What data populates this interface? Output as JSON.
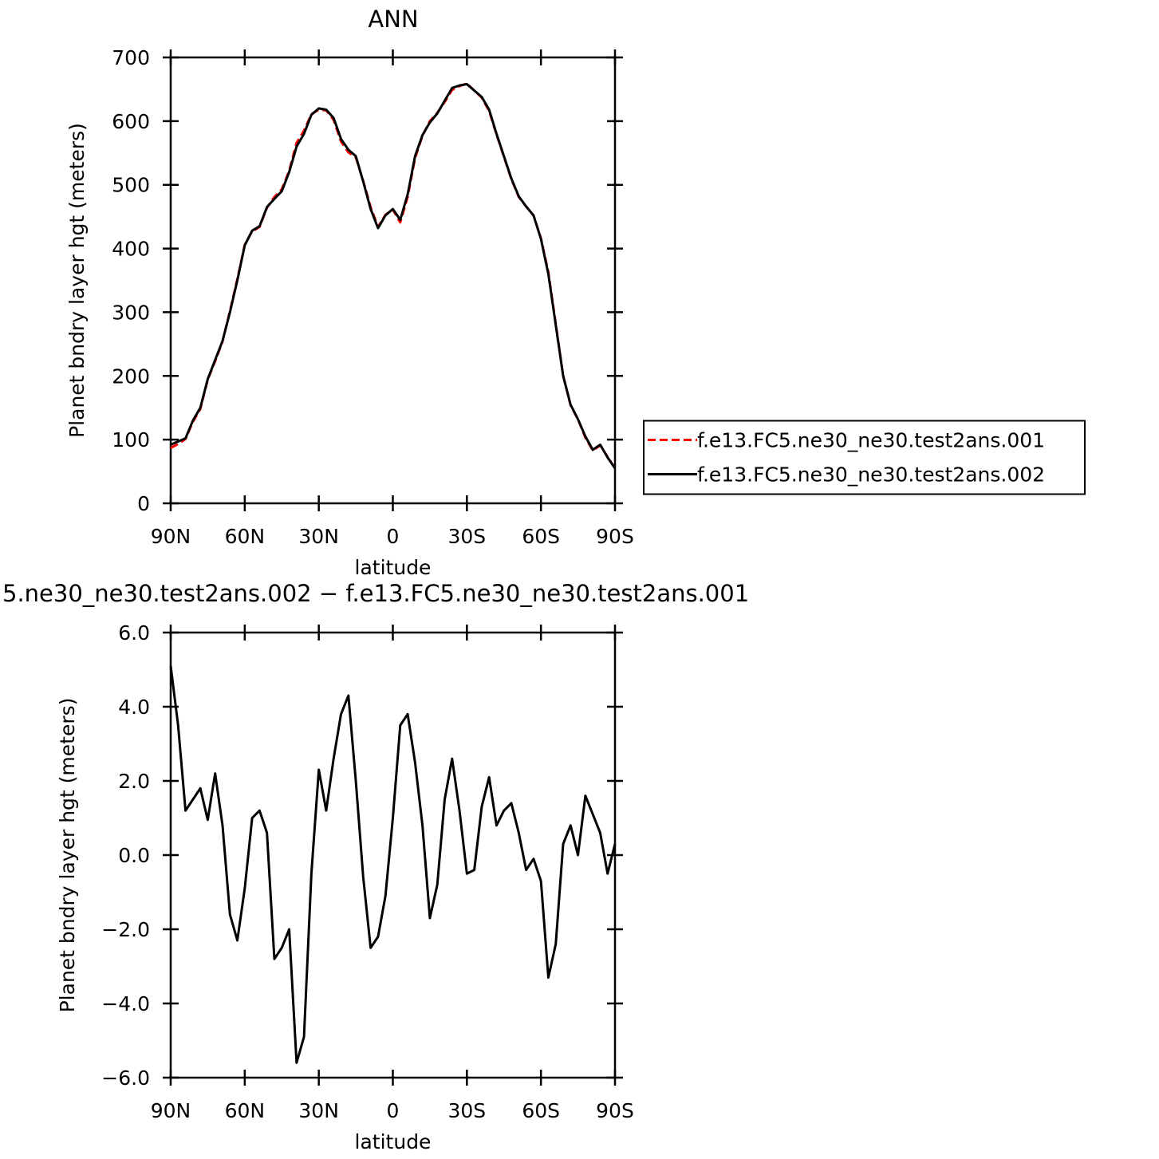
{
  "chart_data": [
    {
      "type": "line",
      "title": "ANN",
      "x_label": "latitude",
      "y_label": "Planet bndry layer hgt (meters)",
      "x": [
        90,
        87,
        84,
        81,
        78,
        75,
        72,
        69,
        66,
        63,
        60,
        57,
        54,
        51,
        48,
        45,
        42,
        39,
        36,
        33,
        30,
        27,
        24,
        21,
        18,
        15,
        12,
        9,
        6,
        3,
        0,
        -3,
        -6,
        -9,
        -12,
        -15,
        -18,
        -21,
        -24,
        -27,
        -30,
        -33,
        -36,
        -39,
        -42,
        -45,
        -48,
        -51,
        -54,
        -57,
        -60,
        -63,
        -66,
        -69,
        -72,
        -75,
        -78,
        -81,
        -84,
        -87,
        -90
      ],
      "xlim": [
        90,
        -90
      ],
      "xticks": [
        {
          "value": 90,
          "label": "90N"
        },
        {
          "value": 60,
          "label": "60N"
        },
        {
          "value": 30,
          "label": "30N"
        },
        0,
        {
          "value": -30,
          "label": "30S"
        },
        {
          "value": -60,
          "label": "60S"
        },
        {
          "value": -90,
          "label": "90S"
        }
      ],
      "ylim": [
        0,
        700
      ],
      "yticks": [
        0,
        100,
        200,
        300,
        400,
        500,
        600,
        700
      ],
      "legend": "right",
      "series": [
        {
          "name": "f.e13.FC5.ne30_ne30.test2ans.001",
          "color": "#ff0000",
          "dash": "dashed",
          "values": [
            87,
            93,
            101,
            128,
            148,
            194,
            223,
            254,
            302,
            352,
            406,
            427,
            434,
            464,
            481,
            493,
            522,
            566,
            585,
            611,
            618,
            617,
            602,
            568,
            551,
            543,
            506,
            465,
            434,
            453,
            461,
            441,
            481,
            542,
            577,
            600,
            613,
            630,
            649,
            655,
            659,
            648,
            637,
            616,
            579,
            544,
            509,
            481,
            466,
            452,
            416,
            363,
            282,
            200,
            154,
            132,
            103,
            83,
            91,
            73,
            55
          ]
        },
        {
          "name": "f.e13.FC5.ne30_ne30.test2ans.002",
          "color": "#000000",
          "dash": "solid",
          "values": [
            92,
            97,
            102,
            130,
            150,
            195,
            225,
            255,
            300,
            350,
            405,
            428,
            435,
            465,
            478,
            490,
            520,
            560,
            580,
            610,
            620,
            618,
            605,
            572,
            555,
            545,
            505,
            462,
            432,
            452,
            462,
            445,
            485,
            545,
            578,
            598,
            612,
            632,
            652,
            656,
            658,
            648,
            638,
            618,
            580,
            545,
            510,
            482,
            466,
            452,
            415,
            360,
            280,
            200,
            155,
            132,
            105,
            84,
            92,
            72,
            55
          ]
        }
      ]
    },
    {
      "type": "line",
      "title": "5.ne30_ne30.test2ans.002 − f.e13.FC5.ne30_ne30.test2ans.001",
      "x_label": "latitude",
      "y_label": "Planet bndry layer hgt (meters)",
      "x": [
        90,
        87,
        84,
        81,
        78,
        75,
        72,
        69,
        66,
        63,
        60,
        57,
        54,
        51,
        48,
        45,
        42,
        39,
        36,
        33,
        30,
        27,
        24,
        21,
        18,
        15,
        12,
        9,
        6,
        3,
        0,
        -3,
        -6,
        -9,
        -12,
        -15,
        -18,
        -21,
        -24,
        -27,
        -30,
        -33,
        -36,
        -39,
        -42,
        -45,
        -48,
        -51,
        -54,
        -57,
        -60,
        -63,
        -66,
        -69,
        -72,
        -75,
        -78,
        -81,
        -84,
        -87,
        -90
      ],
      "xlim": [
        90,
        -90
      ],
      "xticks": [
        {
          "value": 90,
          "label": "90N"
        },
        {
          "value": 60,
          "label": "60N"
        },
        {
          "value": 30,
          "label": "30N"
        },
        0,
        {
          "value": -30,
          "label": "30S"
        },
        {
          "value": -60,
          "label": "60S"
        },
        {
          "value": -90,
          "label": "90S"
        }
      ],
      "ylim": [
        -6,
        6
      ],
      "yticks": [
        {
          "value": -6,
          "label": "−6.0"
        },
        {
          "value": -4,
          "label": "−4.0"
        },
        {
          "value": -2,
          "label": "−2.0"
        },
        {
          "value": 0,
          "label": "0.0"
        },
        {
          "value": 2,
          "label": "2.0"
        },
        {
          "value": 4,
          "label": "4.0"
        },
        {
          "value": 6,
          "label": "6.0"
        }
      ],
      "series": [
        {
          "color": "#000000",
          "dash": "solid",
          "values": [
            5.1,
            3.5,
            1.2,
            1.5,
            1.8,
            0.95,
            2.2,
            0.8,
            -1.6,
            -2.3,
            -0.9,
            1.0,
            1.2,
            0.6,
            -2.8,
            -2.5,
            -2.0,
            -5.6,
            -4.9,
            -0.5,
            2.3,
            1.2,
            2.6,
            3.8,
            4.3,
            2.0,
            -0.6,
            -2.5,
            -2.2,
            -1.1,
            1.0,
            3.5,
            3.8,
            2.5,
            0.8,
            -1.7,
            -0.8,
            1.5,
            2.6,
            1.2,
            -0.5,
            -0.4,
            1.3,
            2.1,
            0.8,
            1.2,
            1.4,
            0.6,
            -0.4,
            -0.1,
            -0.7,
            -3.3,
            -2.4,
            0.3,
            0.8,
            0.0,
            1.6,
            1.1,
            0.6,
            -0.5,
            0.3
          ]
        }
      ]
    }
  ]
}
